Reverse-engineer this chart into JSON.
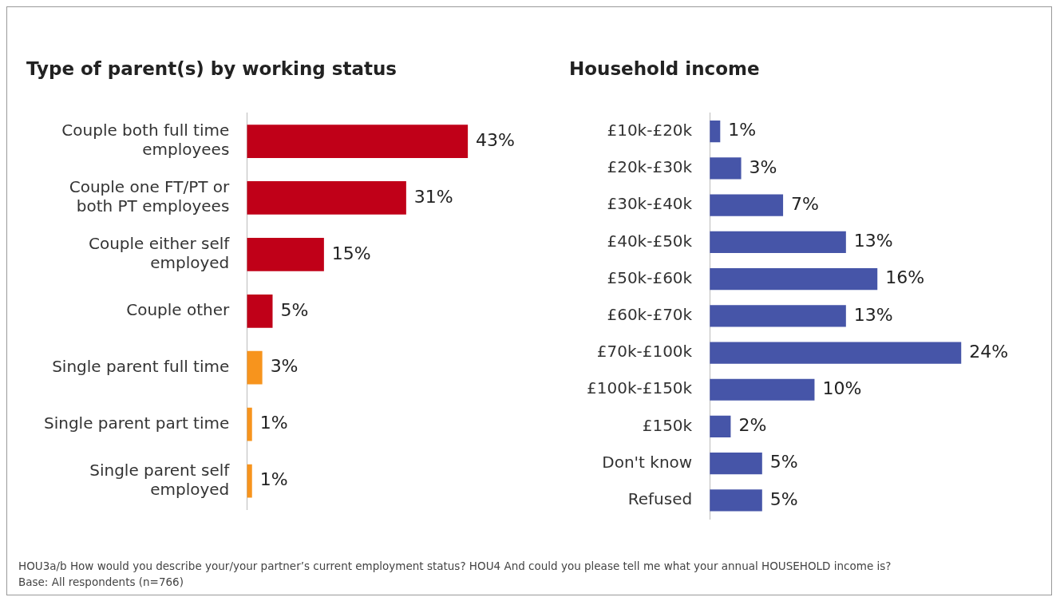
{
  "chart_data": [
    {
      "type": "bar",
      "orientation": "horizontal",
      "title": "Type of parent(s) by working status",
      "categories": [
        "Couple both full time employees",
        "Couple one FT/PT or both PT employees",
        "Couple either self employed",
        "Couple other",
        "Single parent full time",
        "Single parent part time",
        "Single parent self employed"
      ],
      "values": [
        43,
        31,
        15,
        5,
        3,
        1,
        1
      ],
      "colors": [
        "#c00018",
        "#c00018",
        "#c00018",
        "#c00018",
        "#f7941d",
        "#f7941d",
        "#f7941d"
      ],
      "value_labels": [
        "43%",
        "31%",
        "15%",
        "5%",
        "3%",
        "1%",
        "1%"
      ],
      "grid": false,
      "legend": false,
      "tick_labels": "y",
      "annotations": [
        "HOU3a/b How would you describe your/your partner’s current employment status? HOU4 And could you please tell me what your annual HOUSEHOLD income is?",
        "Base: All respondents (n=766)"
      ]
    },
    {
      "type": "bar",
      "orientation": "horizontal",
      "title": "Household income",
      "categories": [
        "£10k-£20k",
        "£20k-£30k",
        "£30k-£40k",
        "£40k-£50k",
        "£50k-£60k",
        "£60k-£70k",
        "£70k-£100k",
        "£100k-£150k",
        "£150k",
        "Don't know",
        "Refused"
      ],
      "values": [
        1,
        3,
        7,
        13,
        16,
        13,
        24,
        10,
        2,
        5,
        5
      ],
      "color": "#4655a8",
      "value_labels": [
        "1%",
        "3%",
        "7%",
        "13%",
        "16%",
        "13%",
        "24%",
        "10%",
        "2%",
        "5%",
        "5%"
      ],
      "grid": false,
      "legend": false,
      "tick_labels": "y"
    }
  ]
}
